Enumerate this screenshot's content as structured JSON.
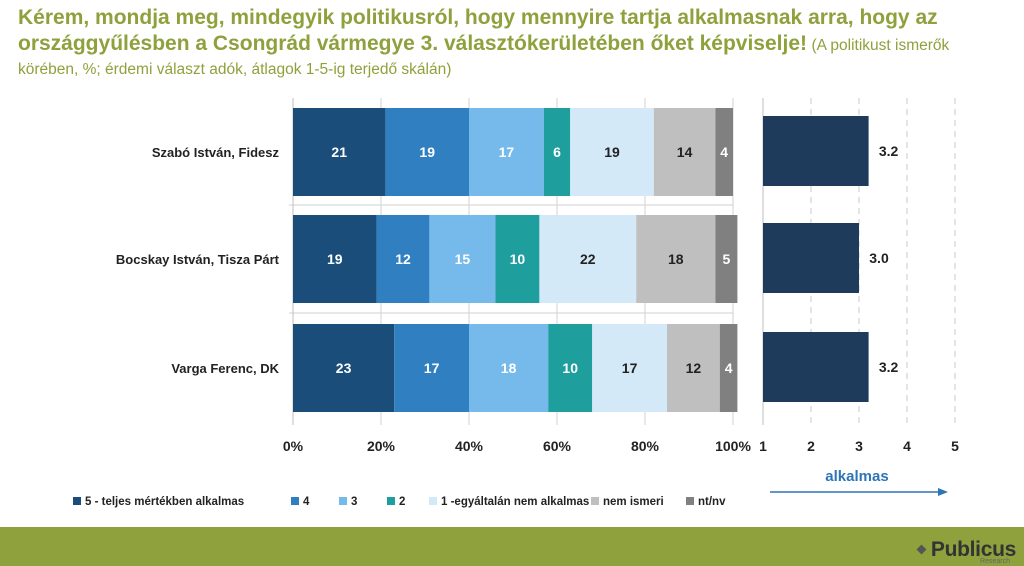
{
  "title": {
    "main": "Kérem, mondja meg, mindegyik politikusról, hogy mennyire tartja alkalmasnak arra, hogy az országgyűlésben a Csongrád vármegye 3. választókerületében őket képviselje!",
    "note": "(A politikust ismerők körében, %; érdemi választ adók, átlagok 1-5-ig terjedő skálán)"
  },
  "colors": {
    "title": "#8ea13c",
    "footer": "#8ea13c",
    "avg_bar": "#1f3b5c",
    "arrow": "#2e75b6"
  },
  "logo": {
    "name": "Publicus",
    "sub": "Research",
    "icon": "diamond-cluster-icon"
  },
  "chart_data": [
    {
      "type": "bar",
      "orientation": "horizontal",
      "stacked": true,
      "categories": [
        "Szabó István, Fidesz",
        "Bocskay István, Tisza Párt",
        "Varga Ferenc, DK"
      ],
      "series": [
        {
          "name": "5 - teljes mértékben alkalmas",
          "color": "#1a4d7a",
          "values": [
            21,
            19,
            23
          ]
        },
        {
          "name": "4",
          "color": "#2f7fc1",
          "values": [
            19,
            12,
            17
          ]
        },
        {
          "name": "3",
          "color": "#75baeb",
          "values": [
            17,
            15,
            18
          ]
        },
        {
          "name": "2",
          "color": "#1f9e9e",
          "values": [
            6,
            10,
            10
          ]
        },
        {
          "name": "1 -egyáltalán nem alkalmas",
          "color": "#d3e9f8",
          "values": [
            19,
            22,
            17
          ]
        },
        {
          "name": "nem ismeri",
          "color": "#bfbfbf",
          "values": [
            14,
            18,
            12
          ]
        },
        {
          "name": "nt/nv",
          "color": "#808080",
          "values": [
            4,
            5,
            4
          ]
        }
      ],
      "xlim": [
        0,
        100
      ],
      "xticks": [
        "0%",
        "20%",
        "40%",
        "60%",
        "80%",
        "100%"
      ],
      "grid": true,
      "legend": "bottom"
    },
    {
      "type": "bar",
      "orientation": "horizontal",
      "categories": [
        "Szabó István, Fidesz",
        "Bocskay István, Tisza Párt",
        "Varga Ferenc, DK"
      ],
      "values": [
        3.2,
        3.0,
        3.2
      ],
      "labels": [
        "3.2",
        "3.0",
        "3.2"
      ],
      "xlim": [
        1,
        5
      ],
      "xticks": [
        "1",
        "2",
        "3",
        "4",
        "5"
      ],
      "xlabel": "alkalmas",
      "grid": true
    }
  ]
}
